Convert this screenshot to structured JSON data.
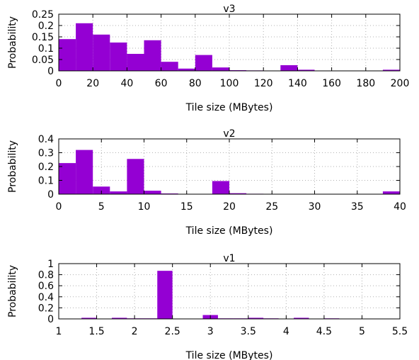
{
  "colors": {
    "bar": "#9400d3",
    "axis": "#000000",
    "grid": "#b0b0b0"
  },
  "chart_data": [
    {
      "type": "bar",
      "title": "v3",
      "xlabel": "Tile size (MBytes)",
      "ylabel": "Probability",
      "xlim": [
        0,
        200
      ],
      "ylim": [
        0,
        0.25
      ],
      "xticks": [
        0,
        20,
        40,
        60,
        80,
        100,
        120,
        140,
        160,
        180,
        200
      ],
      "yticks": [
        0,
        0.05,
        0.1,
        0.15,
        0.2,
        0.25
      ],
      "xtick_labels": [
        "0",
        "20",
        "40",
        "60",
        "80",
        "100",
        "120",
        "140",
        "160",
        "180",
        "200"
      ],
      "ytick_labels": [
        "0",
        "0.05",
        "0.1",
        "0.15",
        "0.2",
        "0.25"
      ],
      "grid": true,
      "bin_width": 10,
      "bins": [
        {
          "x": 0,
          "value": 0.14
        },
        {
          "x": 10,
          "value": 0.21
        },
        {
          "x": 20,
          "value": 0.16
        },
        {
          "x": 30,
          "value": 0.125
        },
        {
          "x": 40,
          "value": 0.075
        },
        {
          "x": 50,
          "value": 0.135
        },
        {
          "x": 60,
          "value": 0.04
        },
        {
          "x": 70,
          "value": 0.01
        },
        {
          "x": 80,
          "value": 0.07
        },
        {
          "x": 90,
          "value": 0.015
        },
        {
          "x": 100,
          "value": 0.003
        },
        {
          "x": 110,
          "value": 0.002
        },
        {
          "x": 120,
          "value": 0.001
        },
        {
          "x": 130,
          "value": 0.025
        },
        {
          "x": 140,
          "value": 0.005
        },
        {
          "x": 150,
          "value": 0.001
        },
        {
          "x": 160,
          "value": 0.001
        },
        {
          "x": 170,
          "value": 0.001
        },
        {
          "x": 180,
          "value": 0.001
        },
        {
          "x": 190,
          "value": 0.005
        }
      ]
    },
    {
      "type": "bar",
      "title": "v2",
      "xlabel": "Tile size (MBytes)",
      "ylabel": "Probability",
      "xlim": [
        0,
        40
      ],
      "ylim": [
        0,
        0.4
      ],
      "xticks": [
        0,
        5,
        10,
        15,
        20,
        25,
        30,
        35,
        40
      ],
      "yticks": [
        0,
        0.1,
        0.2,
        0.3,
        0.4
      ],
      "xtick_labels": [
        "0",
        "5",
        "10",
        "15",
        "20",
        "25",
        "30",
        "35",
        "40"
      ],
      "ytick_labels": [
        "0",
        "0.1",
        "0.2",
        "0.3",
        "0.4"
      ],
      "grid": true,
      "bin_width": 2,
      "bins": [
        {
          "x": 0,
          "value": 0.225
        },
        {
          "x": 2,
          "value": 0.32
        },
        {
          "x": 4,
          "value": 0.055
        },
        {
          "x": 6,
          "value": 0.02
        },
        {
          "x": 8,
          "value": 0.255
        },
        {
          "x": 10,
          "value": 0.025
        },
        {
          "x": 12,
          "value": 0.005
        },
        {
          "x": 14,
          "value": 0.002
        },
        {
          "x": 16,
          "value": 0.002
        },
        {
          "x": 18,
          "value": 0.095
        },
        {
          "x": 20,
          "value": 0.007
        },
        {
          "x": 22,
          "value": 0.003
        },
        {
          "x": 24,
          "value": 0.001
        },
        {
          "x": 26,
          "value": 0.001
        },
        {
          "x": 28,
          "value": 0.001
        },
        {
          "x": 30,
          "value": 0.001
        },
        {
          "x": 32,
          "value": 0.001
        },
        {
          "x": 34,
          "value": 0.001
        },
        {
          "x": 36,
          "value": 0.001
        },
        {
          "x": 38,
          "value": 0.02
        }
      ]
    },
    {
      "type": "bar",
      "title": "v1",
      "xlabel": "Tile size (MBytes)",
      "ylabel": "Probability",
      "xlim": [
        1,
        5.5
      ],
      "ylim": [
        0,
        1
      ],
      "xticks": [
        1,
        1.5,
        2,
        2.5,
        3,
        3.5,
        4,
        4.5,
        5,
        5.5
      ],
      "yticks": [
        0,
        0.2,
        0.4,
        0.6,
        0.8,
        1
      ],
      "xtick_labels": [
        "1",
        "1.5",
        "2",
        "2.5",
        "3",
        "3.5",
        "4",
        "4.5",
        "5",
        "5.5"
      ],
      "ytick_labels": [
        "0",
        "0.2",
        "0.4",
        "0.6",
        "0.8",
        "1"
      ],
      "grid": true,
      "bin_width": 0.2,
      "bins": [
        {
          "x": 1.3,
          "value": 0.02
        },
        {
          "x": 1.7,
          "value": 0.02
        },
        {
          "x": 1.9,
          "value": 0.01
        },
        {
          "x": 2.1,
          "value": 0.01
        },
        {
          "x": 2.3,
          "value": 0.87
        },
        {
          "x": 2.9,
          "value": 0.07
        },
        {
          "x": 3.1,
          "value": 0.01
        },
        {
          "x": 3.3,
          "value": 0.01
        },
        {
          "x": 3.5,
          "value": 0.02
        },
        {
          "x": 3.7,
          "value": 0.01
        },
        {
          "x": 4.1,
          "value": 0.02
        },
        {
          "x": 4.5,
          "value": 0.01
        }
      ]
    }
  ]
}
